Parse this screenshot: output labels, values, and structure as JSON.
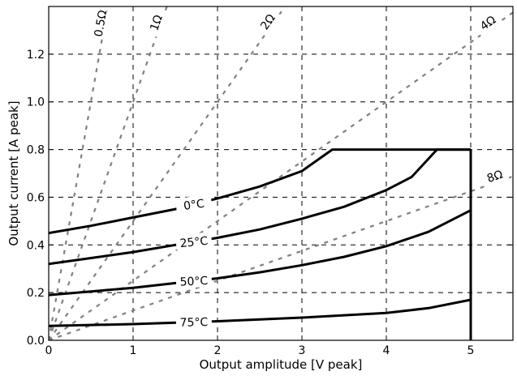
{
  "chart_data": {
    "type": "line",
    "title": "",
    "xlabel": "Output amplitude [V peak]",
    "ylabel": "Output current [A peak]",
    "xlim": [
      0,
      5.5
    ],
    "ylim": [
      0,
      1.4
    ],
    "xticks": [
      "0",
      "1",
      "2",
      "3",
      "4",
      "5"
    ],
    "yticks": [
      "0.0",
      "0.2",
      "0.4",
      "0.6",
      "0.8",
      "1.0",
      "1.2"
    ],
    "xtick_values": [
      0,
      1,
      2,
      3,
      4,
      5
    ],
    "ytick_values": [
      0.0,
      0.2,
      0.4,
      0.6,
      0.8,
      1.0,
      1.2
    ],
    "grid": true,
    "temperature_curves": [
      {
        "label": "0°C",
        "x": [
          0,
          0.5,
          1.0,
          1.5,
          2.0,
          2.5,
          3.0,
          3.36,
          5.0
        ],
        "y": [
          0.45,
          0.48,
          0.515,
          0.55,
          0.595,
          0.645,
          0.71,
          0.8,
          0.8
        ]
      },
      {
        "label": "25°C",
        "x": [
          0,
          0.5,
          1.0,
          1.5,
          2.0,
          2.5,
          3.0,
          3.5,
          4.0,
          4.3,
          4.6,
          5.0
        ],
        "y": [
          0.32,
          0.345,
          0.37,
          0.4,
          0.43,
          0.465,
          0.51,
          0.56,
          0.63,
          0.685,
          0.8,
          0.8
        ]
      },
      {
        "label": "50°C",
        "x": [
          0,
          0.5,
          1.0,
          1.5,
          2.0,
          2.5,
          3.0,
          3.5,
          4.0,
          4.5,
          5.0
        ],
        "y": [
          0.19,
          0.205,
          0.22,
          0.24,
          0.26,
          0.285,
          0.315,
          0.35,
          0.395,
          0.455,
          0.545
        ]
      },
      {
        "label": "75°C",
        "x": [
          0,
          1.0,
          2.0,
          3.0,
          4.0,
          4.5,
          5.0
        ],
        "y": [
          0.06,
          0.068,
          0.08,
          0.095,
          0.115,
          0.135,
          0.17
        ]
      }
    ],
    "limit_lines": [
      {
        "label": "",
        "x": [
          5.0,
          5.0
        ],
        "y": [
          0.0,
          0.8
        ]
      }
    ],
    "load_lines": [
      {
        "label": "0.5Ω",
        "ohms": 0.5
      },
      {
        "label": "1Ω",
        "ohms": 1
      },
      {
        "label": "2Ω",
        "ohms": 2
      },
      {
        "label": "4Ω",
        "ohms": 4
      },
      {
        "label": "8Ω",
        "ohms": 8
      }
    ],
    "colors": {
      "curve": "#000000",
      "load_line": "#808080",
      "grid": "#000000"
    }
  }
}
